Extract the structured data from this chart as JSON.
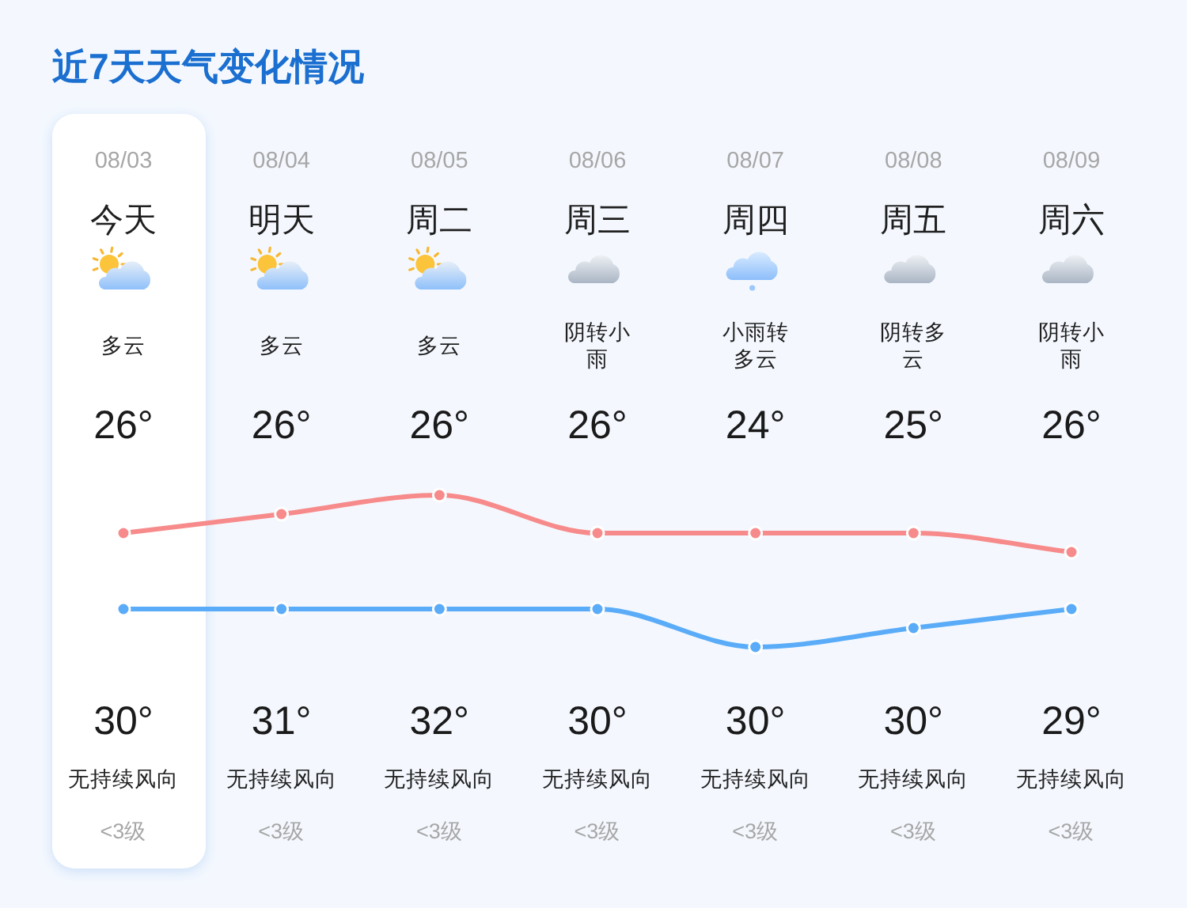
{
  "chart_data": {
    "type": "line",
    "title": "近7天天气变化情况",
    "categories": [
      "08/03",
      "08/04",
      "08/05",
      "08/06",
      "08/07",
      "08/08",
      "08/09"
    ],
    "series": [
      {
        "color": "#f78b8b",
        "values": [
          30,
          31,
          32,
          30,
          30,
          30,
          29
        ],
        "value_labels": [
          "30°",
          "31°",
          "32°",
          "30°",
          "30°",
          "30°",
          "29°"
        ]
      },
      {
        "color": "#5aacf8",
        "values": [
          26,
          26,
          26,
          26,
          24,
          25,
          26
        ],
        "value_labels": [
          "26°",
          "26°",
          "26°",
          "26°",
          "24°",
          "25°",
          "26°"
        ]
      }
    ],
    "marker": "circle",
    "annotations": [
      "今天",
      "明天",
      "周二",
      "周三",
      "周四",
      "周五",
      "周六",
      "多云",
      "多云",
      "多云",
      "阴转小雨",
      "小雨转多云",
      "阴转多云",
      "阴转小雨",
      "无持续风向",
      "无持续风向",
      "无持续风向",
      "无持续风向",
      "无持续风向",
      "无持续风向",
      "无持续风向",
      "<3级",
      "<3级",
      "<3级",
      "<3级",
      "<3级",
      "<3级",
      "<3级"
    ]
  }
}
